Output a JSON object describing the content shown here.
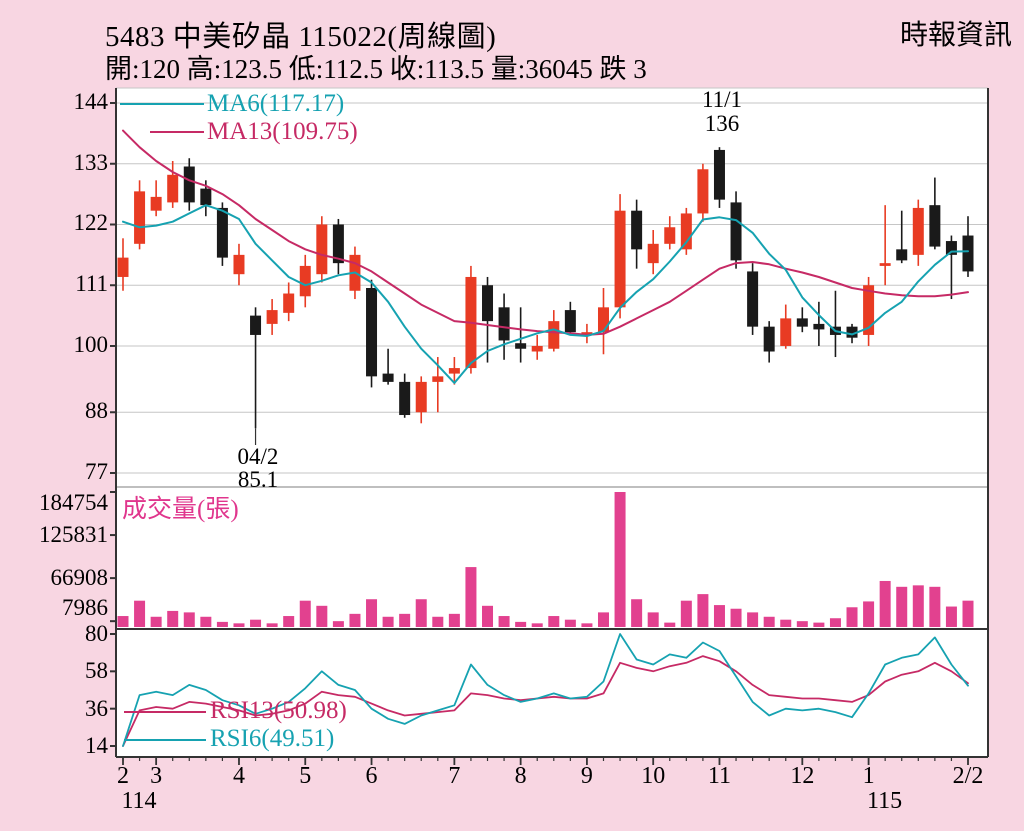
{
  "header": {
    "title": "5483  中美矽晶 115022(周線圖)",
    "source": "時報資訊",
    "stats": "開:120 高:123.5 低:112.5 收:113.5 量:36045 跌 3"
  },
  "legend": {
    "ma6": "MA6(117.17)",
    "ma13": "MA13(109.75)",
    "volume": "成交量(張)",
    "rsi13": "RSI13(50.98)",
    "rsi6": "RSI6(49.51)"
  },
  "annotations": {
    "high_date": "11/1",
    "high_value": "136",
    "low_date": "04/2",
    "low_value": "85.1",
    "high_week_index": 36,
    "low_week_index": 8,
    "low_price": 85.1
  },
  "colors": {
    "background": "#f8d6e2",
    "panel": "#ffffff",
    "grid": "#c6c6c6",
    "axis": "#333333",
    "up_candle": "#e83b23",
    "down_candle": "#1a1a1a",
    "volume_bar": "#e2418f",
    "volume_text": "#e0368d",
    "ma6_teal": "#16a2b1",
    "ma13_crimson": "#c62a65",
    "text": "#000000"
  },
  "chart_data": {
    "type": "candlestick",
    "panels": [
      "price",
      "volume",
      "rsi"
    ],
    "title": "5483 中美矽晶 weekly chart",
    "price_ticks": [
      144,
      133,
      122,
      111,
      100,
      88,
      77
    ],
    "volume_ticks": [
      184754,
      125831,
      66908,
      7986
    ],
    "rsi_ticks": [
      80,
      58,
      36,
      14
    ],
    "months": [
      {
        "label": "2",
        "index": 0
      },
      {
        "label": "3",
        "index": 2
      },
      {
        "label": "4",
        "index": 7
      },
      {
        "label": "5",
        "index": 11
      },
      {
        "label": "6",
        "index": 15
      },
      {
        "label": "7",
        "index": 20
      },
      {
        "label": "8",
        "index": 24
      },
      {
        "label": "9",
        "index": 28
      },
      {
        "label": "10",
        "index": 32
      },
      {
        "label": "11",
        "index": 36
      },
      {
        "label": "12",
        "index": 41
      },
      {
        "label": "1",
        "index": 45
      },
      {
        "label": "2/2",
        "index": 51
      }
    ],
    "year_labels": [
      {
        "label": "114",
        "month_index": 0
      },
      {
        "label": "115",
        "month_index": 45
      }
    ],
    "week_fields": [
      "open",
      "high",
      "low",
      "close",
      "volume",
      "ma6",
      "ma13",
      "rsi6",
      "rsi13"
    ],
    "weeks": [
      [
        112.5,
        119.5,
        110.0,
        116.0,
        15000,
        122.5,
        139.0,
        14.0,
        14.0
      ],
      [
        118.5,
        130.0,
        117.5,
        128.0,
        36000,
        121.5,
        136.0,
        44.0,
        35.0
      ],
      [
        124.5,
        130.0,
        123.5,
        127.0,
        14000,
        121.8,
        133.5,
        46.0,
        37.0
      ],
      [
        126.0,
        133.5,
        125.0,
        131.0,
        22000,
        122.5,
        131.5,
        44.0,
        36.0
      ],
      [
        132.5,
        134.0,
        124.5,
        126.0,
        20000,
        124.0,
        130.0,
        50.0,
        40.0
      ],
      [
        128.5,
        130.0,
        123.5,
        125.5,
        14000,
        125.5,
        129.0,
        47.0,
        39.0
      ],
      [
        125.0,
        126.0,
        114.5,
        116.0,
        7000,
        124.5,
        127.5,
        41.0,
        37.0
      ],
      [
        113.0,
        118.5,
        111.0,
        116.5,
        5000,
        123.0,
        125.5,
        38.0,
        35.0
      ],
      [
        105.5,
        107.0,
        85.1,
        102.0,
        10000,
        118.5,
        123.0,
        33.0,
        32.0
      ],
      [
        104.0,
        108.5,
        102.0,
        106.5,
        5000,
        115.5,
        121.0,
        36.0,
        33.0
      ],
      [
        106.0,
        111.5,
        104.5,
        109.5,
        15000,
        112.5,
        119.0,
        40.0,
        35.0
      ],
      [
        109.0,
        116.5,
        107.0,
        114.5,
        36000,
        111.0,
        117.5,
        48.0,
        39.0
      ],
      [
        113.0,
        123.5,
        111.5,
        122.0,
        29000,
        111.8,
        116.5,
        58.0,
        46.0
      ],
      [
        122.0,
        123.0,
        113.0,
        115.0,
        8000,
        112.8,
        115.8,
        50.0,
        44.0
      ],
      [
        110.0,
        118.0,
        108.5,
        116.5,
        18000,
        113.3,
        115.0,
        47.0,
        43.0
      ],
      [
        110.5,
        112.0,
        92.5,
        94.5,
        38000,
        111.5,
        113.5,
        36.0,
        39.0
      ],
      [
        95.0,
        99.5,
        93.0,
        93.5,
        14000,
        108.0,
        111.5,
        30.0,
        35.0
      ],
      [
        93.5,
        95.0,
        87.0,
        87.5,
        18000,
        103.5,
        109.5,
        27.0,
        32.0
      ],
      [
        88.0,
        94.5,
        86.0,
        93.5,
        38000,
        99.5,
        107.5,
        32.0,
        33.0
      ],
      [
        93.5,
        98.0,
        88.0,
        94.5,
        14000,
        96.5,
        106.0,
        35.0,
        34.0
      ],
      [
        95.0,
        98.0,
        93.0,
        96.0,
        18000,
        93.3,
        104.5,
        38.0,
        35.0
      ],
      [
        96.0,
        114.5,
        95.0,
        112.5,
        82000,
        96.9,
        104.2,
        62.0,
        45.0
      ],
      [
        111.0,
        112.5,
        97.0,
        104.5,
        29000,
        99.1,
        103.8,
        50.0,
        44.0
      ],
      [
        107.0,
        109.5,
        97.5,
        101.0,
        15000,
        100.3,
        103.4,
        44.0,
        42.0
      ],
      [
        100.5,
        107.0,
        97.0,
        99.5,
        7000,
        101.3,
        103.0,
        40.0,
        41.0
      ],
      [
        99.0,
        102.0,
        97.5,
        100.0,
        5000,
        102.3,
        102.7,
        42.0,
        42.0
      ],
      [
        99.5,
        106.5,
        99.0,
        104.5,
        15000,
        103.0,
        102.5,
        45.0,
        43.0
      ],
      [
        106.5,
        108.0,
        102.0,
        102.5,
        10000,
        102.0,
        102.3,
        42.0,
        42.0
      ],
      [
        102.0,
        104.0,
        100.5,
        102.5,
        5000,
        101.8,
        102.0,
        43.0,
        42.0
      ],
      [
        102.5,
        110.5,
        98.5,
        107.0,
        20000,
        102.7,
        102.2,
        52.0,
        45.0
      ],
      [
        107.0,
        127.5,
        105.0,
        124.5,
        184754,
        106.9,
        103.5,
        80.0,
        63.0
      ],
      [
        124.5,
        126.5,
        114.0,
        117.5,
        38000,
        109.8,
        105.0,
        65.0,
        60.0
      ],
      [
        115.0,
        121.0,
        113.0,
        118.5,
        20000,
        112.1,
        106.5,
        62.0,
        58.0
      ],
      [
        118.5,
        123.5,
        117.5,
        121.5,
        6000,
        115.3,
        108.0,
        68.0,
        61.0
      ],
      [
        117.5,
        125.0,
        116.5,
        124.0,
        36000,
        118.8,
        110.0,
        66.0,
        63.0
      ],
      [
        124.0,
        133.0,
        122.5,
        132.0,
        45000,
        122.9,
        112.0,
        75.0,
        67.0
      ],
      [
        135.5,
        136.0,
        125.0,
        126.5,
        30000,
        123.3,
        114.0,
        70.0,
        64.0
      ],
      [
        126.0,
        128.0,
        114.0,
        115.5,
        25000,
        122.8,
        115.0,
        55.0,
        58.0
      ],
      [
        113.5,
        115.0,
        102.0,
        103.5,
        20000,
        120.5,
        115.2,
        40.0,
        50.0
      ],
      [
        103.5,
        104.5,
        97.0,
        99.0,
        14000,
        116.7,
        114.8,
        32.0,
        44.0
      ],
      [
        100.0,
        107.5,
        99.5,
        105.0,
        10000,
        113.8,
        114.0,
        36.0,
        43.0
      ],
      [
        105.0,
        107.0,
        102.5,
        103.5,
        8000,
        108.8,
        113.3,
        35.0,
        42.0
      ],
      [
        104.0,
        108.0,
        100.0,
        103.0,
        6000,
        105.6,
        112.5,
        36.0,
        42.0
      ],
      [
        103.5,
        110.0,
        98.0,
        102.0,
        12000,
        102.7,
        111.5,
        34.0,
        41.0
      ],
      [
        103.5,
        104.0,
        100.5,
        101.5,
        27000,
        102.1,
        110.5,
        31.0,
        40.0
      ],
      [
        102.0,
        112.5,
        100.0,
        111.0,
        35000,
        103.3,
        110.0,
        45.0,
        44.0
      ],
      [
        114.5,
        125.5,
        111.0,
        115.0,
        63000,
        106.0,
        109.5,
        62.0,
        52.0
      ],
      [
        117.5,
        124.5,
        115.0,
        115.5,
        55000,
        108.0,
        109.2,
        66.0,
        56.0
      ],
      [
        116.5,
        126.5,
        114.5,
        125.0,
        57000,
        111.7,
        109.0,
        68.0,
        58.0
      ],
      [
        125.5,
        130.5,
        117.5,
        118.0,
        55000,
        114.7,
        109.0,
        78.0,
        63.0
      ],
      [
        119.0,
        120.0,
        108.5,
        116.5,
        28000,
        117.1,
        109.3,
        62.0,
        58.0
      ],
      [
        120.0,
        123.5,
        112.5,
        113.5,
        36045,
        117.17,
        109.75,
        49.51,
        50.98
      ]
    ]
  }
}
